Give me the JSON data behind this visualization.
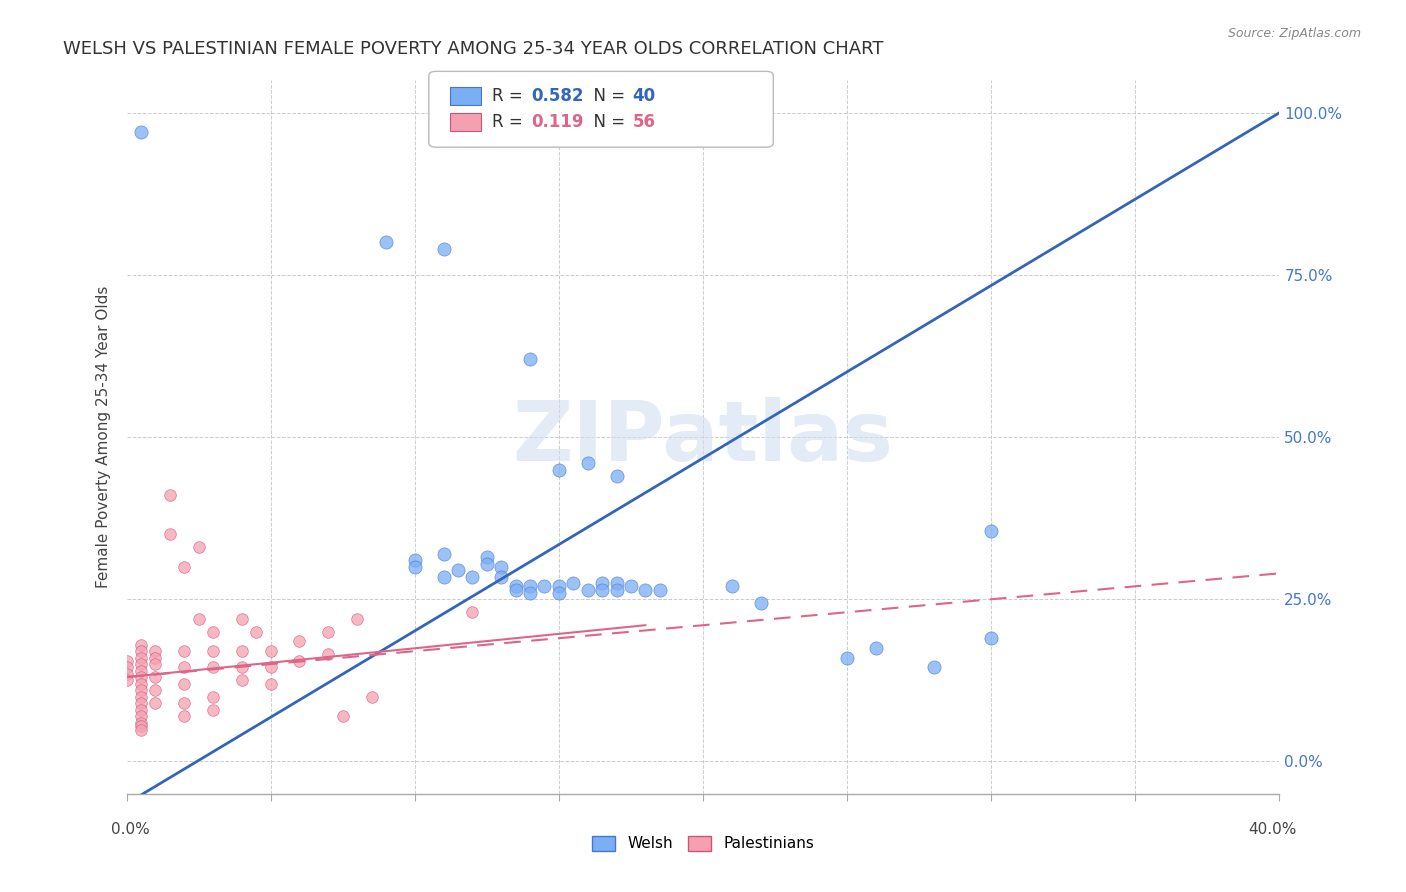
{
  "title": "WELSH VS PALESTINIAN FEMALE POVERTY AMONG 25-34 YEAR OLDS CORRELATION CHART",
  "source": "Source: ZipAtlas.com",
  "ylabel": "Female Poverty Among 25-34 Year Olds",
  "watermark": "ZIPatlas",
  "xlim": [
    0.0,
    0.4
  ],
  "ylim": [
    -0.05,
    1.05
  ],
  "welsh_R": 0.582,
  "welsh_N": 40,
  "palestinian_R": 0.119,
  "palestinian_N": 56,
  "welsh_color": "#7aaef5",
  "welsh_color_dark": "#4477cc",
  "welsh_line_color": "#3366bb",
  "palestinian_color": "#f5a0b0",
  "palestinian_color_dark": "#cc5577",
  "palestinian_line_color": "#dd6688",
  "welsh_scatter": [
    [
      0.005,
      0.97
    ],
    [
      0.09,
      0.8
    ],
    [
      0.11,
      0.79
    ],
    [
      0.14,
      0.62
    ],
    [
      0.15,
      0.45
    ],
    [
      0.16,
      0.46
    ],
    [
      0.17,
      0.44
    ],
    [
      0.1,
      0.31
    ],
    [
      0.1,
      0.3
    ],
    [
      0.11,
      0.32
    ],
    [
      0.11,
      0.285
    ],
    [
      0.115,
      0.295
    ],
    [
      0.12,
      0.285
    ],
    [
      0.125,
      0.315
    ],
    [
      0.125,
      0.305
    ],
    [
      0.13,
      0.3
    ],
    [
      0.13,
      0.285
    ],
    [
      0.135,
      0.27
    ],
    [
      0.135,
      0.265
    ],
    [
      0.14,
      0.27
    ],
    [
      0.14,
      0.26
    ],
    [
      0.145,
      0.27
    ],
    [
      0.15,
      0.27
    ],
    [
      0.15,
      0.26
    ],
    [
      0.155,
      0.275
    ],
    [
      0.16,
      0.265
    ],
    [
      0.165,
      0.275
    ],
    [
      0.165,
      0.265
    ],
    [
      0.17,
      0.275
    ],
    [
      0.17,
      0.265
    ],
    [
      0.175,
      0.27
    ],
    [
      0.18,
      0.265
    ],
    [
      0.185,
      0.265
    ],
    [
      0.21,
      0.27
    ],
    [
      0.22,
      0.245
    ],
    [
      0.25,
      0.16
    ],
    [
      0.26,
      0.175
    ],
    [
      0.28,
      0.145
    ],
    [
      0.3,
      0.355
    ],
    [
      0.3,
      0.19
    ]
  ],
  "palestinian_scatter": [
    [
      0.0,
      0.155
    ],
    [
      0.0,
      0.145
    ],
    [
      0.0,
      0.135
    ],
    [
      0.0,
      0.125
    ],
    [
      0.005,
      0.18
    ],
    [
      0.005,
      0.17
    ],
    [
      0.005,
      0.16
    ],
    [
      0.005,
      0.15
    ],
    [
      0.005,
      0.14
    ],
    [
      0.005,
      0.13
    ],
    [
      0.005,
      0.12
    ],
    [
      0.005,
      0.11
    ],
    [
      0.005,
      0.1
    ],
    [
      0.005,
      0.09
    ],
    [
      0.005,
      0.08
    ],
    [
      0.005,
      0.07
    ],
    [
      0.005,
      0.06
    ],
    [
      0.005,
      0.055
    ],
    [
      0.005,
      0.048
    ],
    [
      0.01,
      0.17
    ],
    [
      0.01,
      0.16
    ],
    [
      0.01,
      0.15
    ],
    [
      0.01,
      0.13
    ],
    [
      0.01,
      0.11
    ],
    [
      0.01,
      0.09
    ],
    [
      0.015,
      0.41
    ],
    [
      0.015,
      0.35
    ],
    [
      0.02,
      0.3
    ],
    [
      0.02,
      0.17
    ],
    [
      0.02,
      0.145
    ],
    [
      0.02,
      0.12
    ],
    [
      0.02,
      0.09
    ],
    [
      0.02,
      0.07
    ],
    [
      0.025,
      0.33
    ],
    [
      0.025,
      0.22
    ],
    [
      0.03,
      0.2
    ],
    [
      0.03,
      0.17
    ],
    [
      0.03,
      0.145
    ],
    [
      0.03,
      0.1
    ],
    [
      0.03,
      0.08
    ],
    [
      0.04,
      0.22
    ],
    [
      0.04,
      0.17
    ],
    [
      0.04,
      0.145
    ],
    [
      0.04,
      0.125
    ],
    [
      0.045,
      0.2
    ],
    [
      0.05,
      0.17
    ],
    [
      0.05,
      0.145
    ],
    [
      0.05,
      0.12
    ],
    [
      0.06,
      0.185
    ],
    [
      0.06,
      0.155
    ],
    [
      0.07,
      0.2
    ],
    [
      0.07,
      0.165
    ],
    [
      0.075,
      0.07
    ],
    [
      0.08,
      0.22
    ],
    [
      0.085,
      0.1
    ],
    [
      0.12,
      0.23
    ]
  ],
  "welsh_trend": [
    0.0,
    0.4
  ],
  "welsh_trend_y": [
    -0.065,
    1.0
  ],
  "pal_trend": [
    0.0,
    0.4
  ],
  "pal_trend_y": [
    0.13,
    0.29
  ],
  "background_color": "#ffffff",
  "grid_color": "#cccccc",
  "title_fontsize": 13,
  "axis_label_fontsize": 11,
  "tick_fontsize": 10,
  "legend_fontsize": 12
}
